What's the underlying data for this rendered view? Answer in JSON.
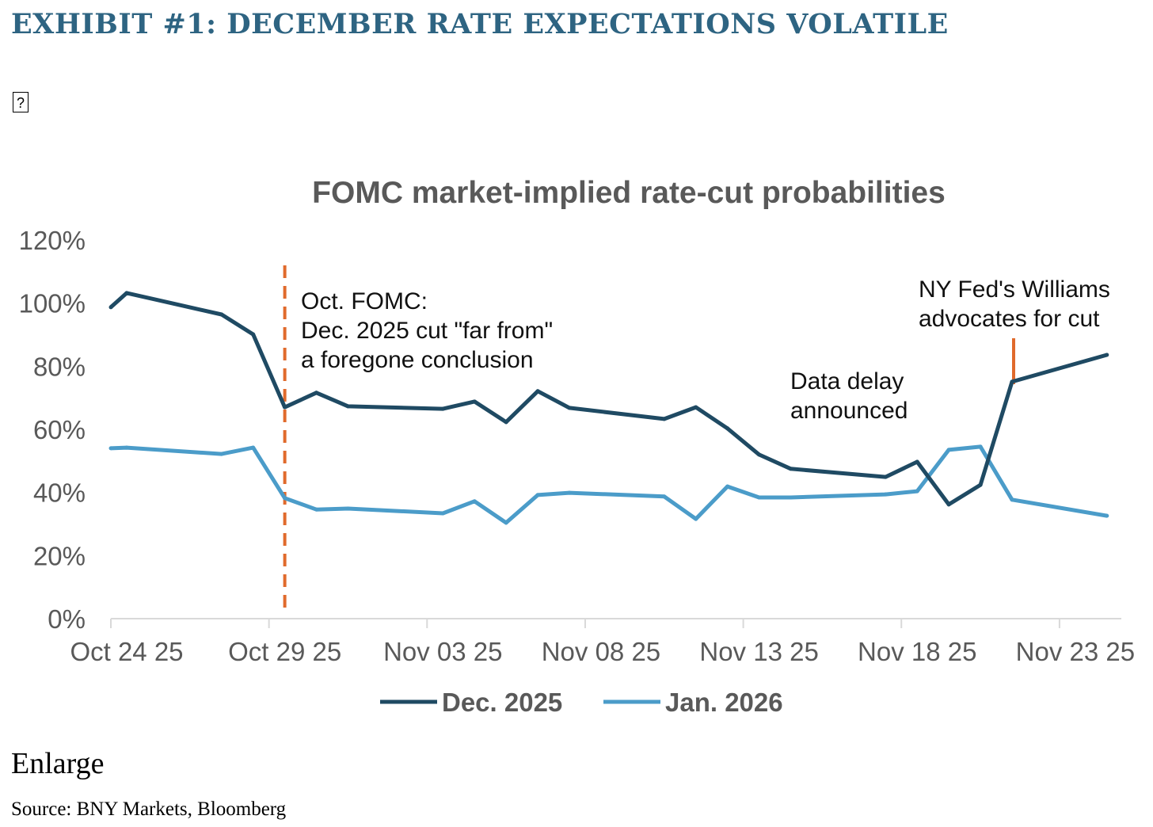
{
  "exhibit_title": "EXHIBIT #1:  DECEMBER RATE EXPECTATIONS VOLATILE",
  "missing_glyph": "?",
  "enlarge_label": "Enlarge",
  "source": "Source: BNY Markets, Bloomberg",
  "colors": {
    "dec": "#1f4a63",
    "jan": "#4b9cc9",
    "annotation": "#e06a2c",
    "title": "#2e6482"
  },
  "chart_data": {
    "type": "line",
    "title": "FOMC market-implied rate-cut probabilities",
    "xlabel": "",
    "ylabel": "",
    "x_unit": "days since Oct 24 2025",
    "xlim": [
      0,
      32
    ],
    "ylim": [
      0,
      120
    ],
    "y_ticks": [
      "0%",
      "20%",
      "40%",
      "60%",
      "80%",
      "100%",
      "120%"
    ],
    "y_tick_values": [
      0,
      20,
      40,
      60,
      80,
      100,
      120
    ],
    "x_ticks": [
      "Oct 24 25",
      "Oct 29 25",
      "Nov 03 25",
      "Nov 08 25",
      "Nov 13 25",
      "Nov 18 25",
      "Nov 23 25"
    ],
    "x_tick_values": [
      0,
      5,
      10,
      15,
      20,
      25,
      30
    ],
    "grid": false,
    "legend_position": "bottom",
    "x": [
      0,
      0.5,
      3.5,
      4.5,
      5.5,
      6.5,
      7.5,
      10.5,
      11.5,
      12.5,
      13.5,
      14.5,
      17.5,
      18.5,
      19.5,
      20.5,
      21.5,
      24.5,
      25.5,
      26.5,
      27.5,
      28.5,
      31.5
    ],
    "series": [
      {
        "name": "Dec. 2025",
        "values": [
          98.7,
          103.2,
          96.4,
          90.1,
          67.0,
          71.6,
          67.3,
          66.5,
          68.8,
          62.3,
          72.1,
          66.8,
          63.3,
          67.0,
          60.3,
          52.0,
          47.5,
          44.9,
          49.7,
          36.2,
          42.4,
          75.1,
          83.6
        ]
      },
      {
        "name": "Jan. 2026",
        "values": [
          54.0,
          54.2,
          52.2,
          54.2,
          38.2,
          34.6,
          34.9,
          33.4,
          37.2,
          30.4,
          39.2,
          39.9,
          38.7,
          31.6,
          41.9,
          38.4,
          38.4,
          39.4,
          40.4,
          53.5,
          54.5,
          37.7,
          32.6
        ]
      }
    ],
    "annotations": [
      {
        "x": 5.5,
        "style": "dashed-vertical",
        "lines": [
          "Oct. FOMC:",
          "Dec. 2025 cut \"far from\"",
          "a foregone conclusion"
        ]
      },
      {
        "lines": [
          "Data delay",
          "announced"
        ]
      },
      {
        "x": 28.5,
        "style": "marker",
        "lines": [
          "NY Fed's Williams",
          "advocates for cut"
        ]
      }
    ]
  }
}
